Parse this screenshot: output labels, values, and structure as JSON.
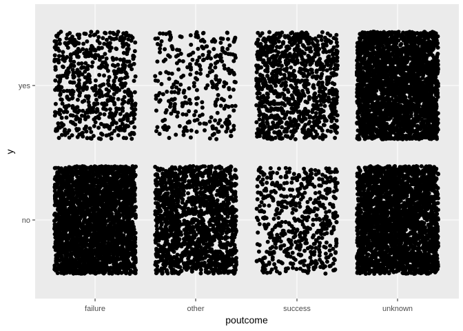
{
  "chart_data": {
    "type": "scatter",
    "subtype": "jitter",
    "title": "",
    "xlabel": "poutcome",
    "ylabel": "y",
    "x_categories": [
      "failure",
      "other",
      "success",
      "unknown"
    ],
    "y_categories": [
      "no",
      "yes"
    ],
    "grid": true,
    "legend": "none",
    "panel_background": "#ebebeb",
    "point_color": "#000000",
    "gridline_color": "#ffffff",
    "approx_point_counts": [
      {
        "x": "failure",
        "y": "no",
        "count": 4283
      },
      {
        "x": "failure",
        "y": "yes",
        "count": 618
      },
      {
        "x": "other",
        "y": "no",
        "count": 1533
      },
      {
        "x": "other",
        "y": "yes",
        "count": 307
      },
      {
        "x": "success",
        "y": "no",
        "count": 533
      },
      {
        "x": "success",
        "y": "yes",
        "count": 978
      },
      {
        "x": "unknown",
        "y": "no",
        "count": 33573
      },
      {
        "x": "unknown",
        "y": "yes",
        "count": 3386
      }
    ]
  }
}
